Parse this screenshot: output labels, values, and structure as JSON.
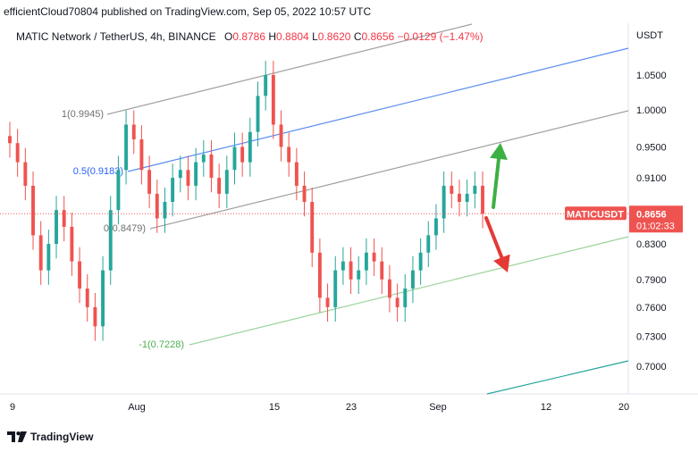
{
  "header": {
    "published_line": "efficientCloud70804 published on TradingView.com, Sep 05, 2022 10:57 UTC"
  },
  "legend": {
    "symbol_line": "MATIC Network / TetherUS, 4h, BINANCE",
    "open_label": "O",
    "open_value": "0.8786",
    "high_label": "H",
    "high_value": "0.8804",
    "low_label": "L",
    "low_value": "0.8620",
    "close_label": "C",
    "close_value": "0.8656",
    "change_value": "−0.0129 (−1.47%)"
  },
  "axis": {
    "currency": "USDT"
  },
  "price_tag": {
    "symbol": "MATICUSDT",
    "price": "0.8656",
    "countdown": "01:02:33"
  },
  "footer": {
    "brand": "TradingView",
    "brand_icon": "tradingview-logo-icon"
  },
  "colors": {
    "up": "#26a69a",
    "down": "#ef5350",
    "channel_gray": "#a0a0a0",
    "fib_blue": "#5b8def",
    "fib_green": "#9ad49a",
    "teal_line": "#26a69a",
    "arrow_up": "#3cb043",
    "arrow_down": "#e53935",
    "price_tag": "#ef5350"
  },
  "chart_data": {
    "type": "candlestick",
    "y_scale": "log",
    "ylim": [
      0.68,
      1.09
    ],
    "y_ticks": [
      "1.0500",
      "1.0000",
      "0.9500",
      "0.9100",
      "0.8700",
      "0.8300",
      "0.7900",
      "0.7600",
      "0.7300",
      "0.7000"
    ],
    "y_tick_values": [
      1.05,
      1.0,
      0.95,
      0.91,
      0.87,
      0.83,
      0.79,
      0.76,
      0.73,
      0.7
    ],
    "x_ticks": [
      "9",
      "Aug",
      "15",
      "23",
      "Sep",
      "12",
      "20"
    ],
    "x_tick_positions": [
      0,
      1,
      2,
      3,
      4,
      5,
      6
    ],
    "last_price": 0.8656,
    "fib_levels": [
      {
        "label": "1(0.9945)",
        "value": 0.9945
      },
      {
        "label": "0.5(0.9183)",
        "value": 0.9183
      },
      {
        "label": "0(0.8479)",
        "value": 0.8479
      },
      {
        "label": "-1(0.7228)",
        "value": 0.7228
      }
    ],
    "closes": [
      0.955,
      0.93,
      0.9,
      0.84,
      0.8,
      0.83,
      0.87,
      0.85,
      0.81,
      0.78,
      0.76,
      0.74,
      0.8,
      0.87,
      0.92,
      0.98,
      0.96,
      0.92,
      0.89,
      0.86,
      0.88,
      0.91,
      0.92,
      0.9,
      0.93,
      0.94,
      0.91,
      0.89,
      0.92,
      0.95,
      0.93,
      0.97,
      1.02,
      1.05,
      0.98,
      0.95,
      0.93,
      0.9,
      0.88,
      0.82,
      0.77,
      0.76,
      0.8,
      0.81,
      0.79,
      0.8,
      0.82,
      0.81,
      0.79,
      0.77,
      0.76,
      0.78,
      0.8,
      0.82,
      0.84,
      0.86,
      0.9,
      0.89,
      0.88,
      0.89,
      0.9,
      0.8656
    ]
  }
}
